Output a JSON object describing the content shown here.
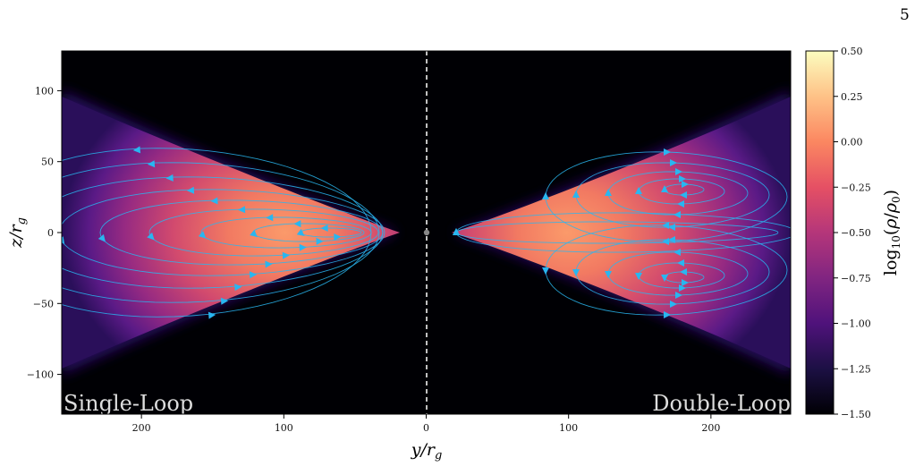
{
  "page": {
    "number": "5"
  },
  "chart_data": {
    "type": "heatmap",
    "description_quantity": "log10 density with velocity streamlines",
    "xlabel": "y/r_g",
    "ylabel": "z/r_g",
    "colorbar_label": "log10(ρ/ρ0)",
    "x_range": [
      -256,
      256
    ],
    "y_range": [
      -128,
      128
    ],
    "x_ticks": [
      {
        "value": -200,
        "label": "200"
      },
      {
        "value": -100,
        "label": "100"
      },
      {
        "value": 0,
        "label": "0"
      },
      {
        "value": 100,
        "label": "100"
      },
      {
        "value": 200,
        "label": "200"
      }
    ],
    "y_ticks": [
      {
        "value": 100,
        "label": "100"
      },
      {
        "value": 50,
        "label": "50"
      },
      {
        "value": 0,
        "label": "0"
      },
      {
        "value": -50,
        "label": "−50"
      },
      {
        "value": -100,
        "label": "−100"
      }
    ],
    "colorbar_range": [
      -1.5,
      0.5
    ],
    "colorbar_ticks": [
      {
        "value": 0.5,
        "label": "0.50"
      },
      {
        "value": 0.25,
        "label": "0.25"
      },
      {
        "value": 0.0,
        "label": "0.00"
      },
      {
        "value": -0.25,
        "label": "−0.25"
      },
      {
        "value": -0.5,
        "label": "−0.50"
      },
      {
        "value": -0.75,
        "label": "−0.75"
      },
      {
        "value": -1.0,
        "label": "−1.00"
      },
      {
        "value": -1.25,
        "label": "−1.25"
      },
      {
        "value": -1.5,
        "label": "−1.50"
      }
    ],
    "colormap": "magma",
    "panels": [
      {
        "name": "Single-Loop",
        "side": "left",
        "loop_count": 1
      },
      {
        "name": "Double-Loop",
        "side": "right",
        "loop_count": 2
      }
    ],
    "midline": {
      "x": 0,
      "style": "dashed",
      "color": "#ffffff"
    },
    "center_marker": {
      "x": 0,
      "y": 0,
      "color": "#888888"
    },
    "streamline_color": "#29b6f0"
  }
}
